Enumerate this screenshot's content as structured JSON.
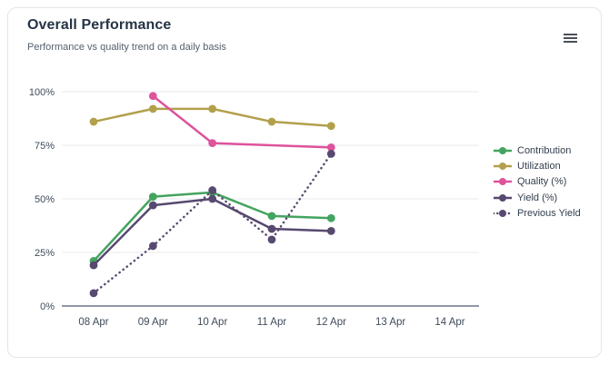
{
  "card": {
    "title": "Overall Performance",
    "subtitle": "Performance vs quality trend on a daily basis"
  },
  "chart_data": {
    "type": "line",
    "title": "Overall Performance",
    "subtitle": "Performance vs quality trend on a daily basis",
    "categories": [
      "08 Apr",
      "09 Apr",
      "10 Apr",
      "11 Apr",
      "12 Apr",
      "13 Apr",
      "14 Apr"
    ],
    "y_ticks": [
      "0%",
      "25%",
      "50%",
      "75%",
      "100%"
    ],
    "y_tick_values": [
      0,
      25,
      50,
      75,
      100
    ],
    "ylim": [
      0,
      100
    ],
    "grid": "horizontal",
    "legend_position": "right",
    "axis_color": "#6a7585",
    "gridline_color": "#e9eaee",
    "series": [
      {
        "name": "Contribution",
        "color": "#44a45f",
        "style": "solid",
        "values": [
          21,
          51,
          53,
          42,
          41,
          null,
          null
        ]
      },
      {
        "name": "Utilization",
        "color": "#b2a04c",
        "style": "solid",
        "values": [
          86,
          92,
          92,
          86,
          84,
          null,
          null
        ]
      },
      {
        "name": "Quality (%)",
        "color": "#de539b",
        "style": "solid",
        "connect_nulls": true,
        "values": [
          null,
          98,
          76,
          null,
          74,
          null,
          null
        ]
      },
      {
        "name": "Yield (%)",
        "color": "#57496f",
        "style": "solid",
        "values": [
          19,
          47,
          50,
          36,
          35,
          null,
          null
        ]
      },
      {
        "name": "Previous Yield",
        "color": "#57496f",
        "style": "dotted",
        "values": [
          6,
          28,
          54,
          31,
          71,
          null,
          null
        ]
      }
    ]
  }
}
